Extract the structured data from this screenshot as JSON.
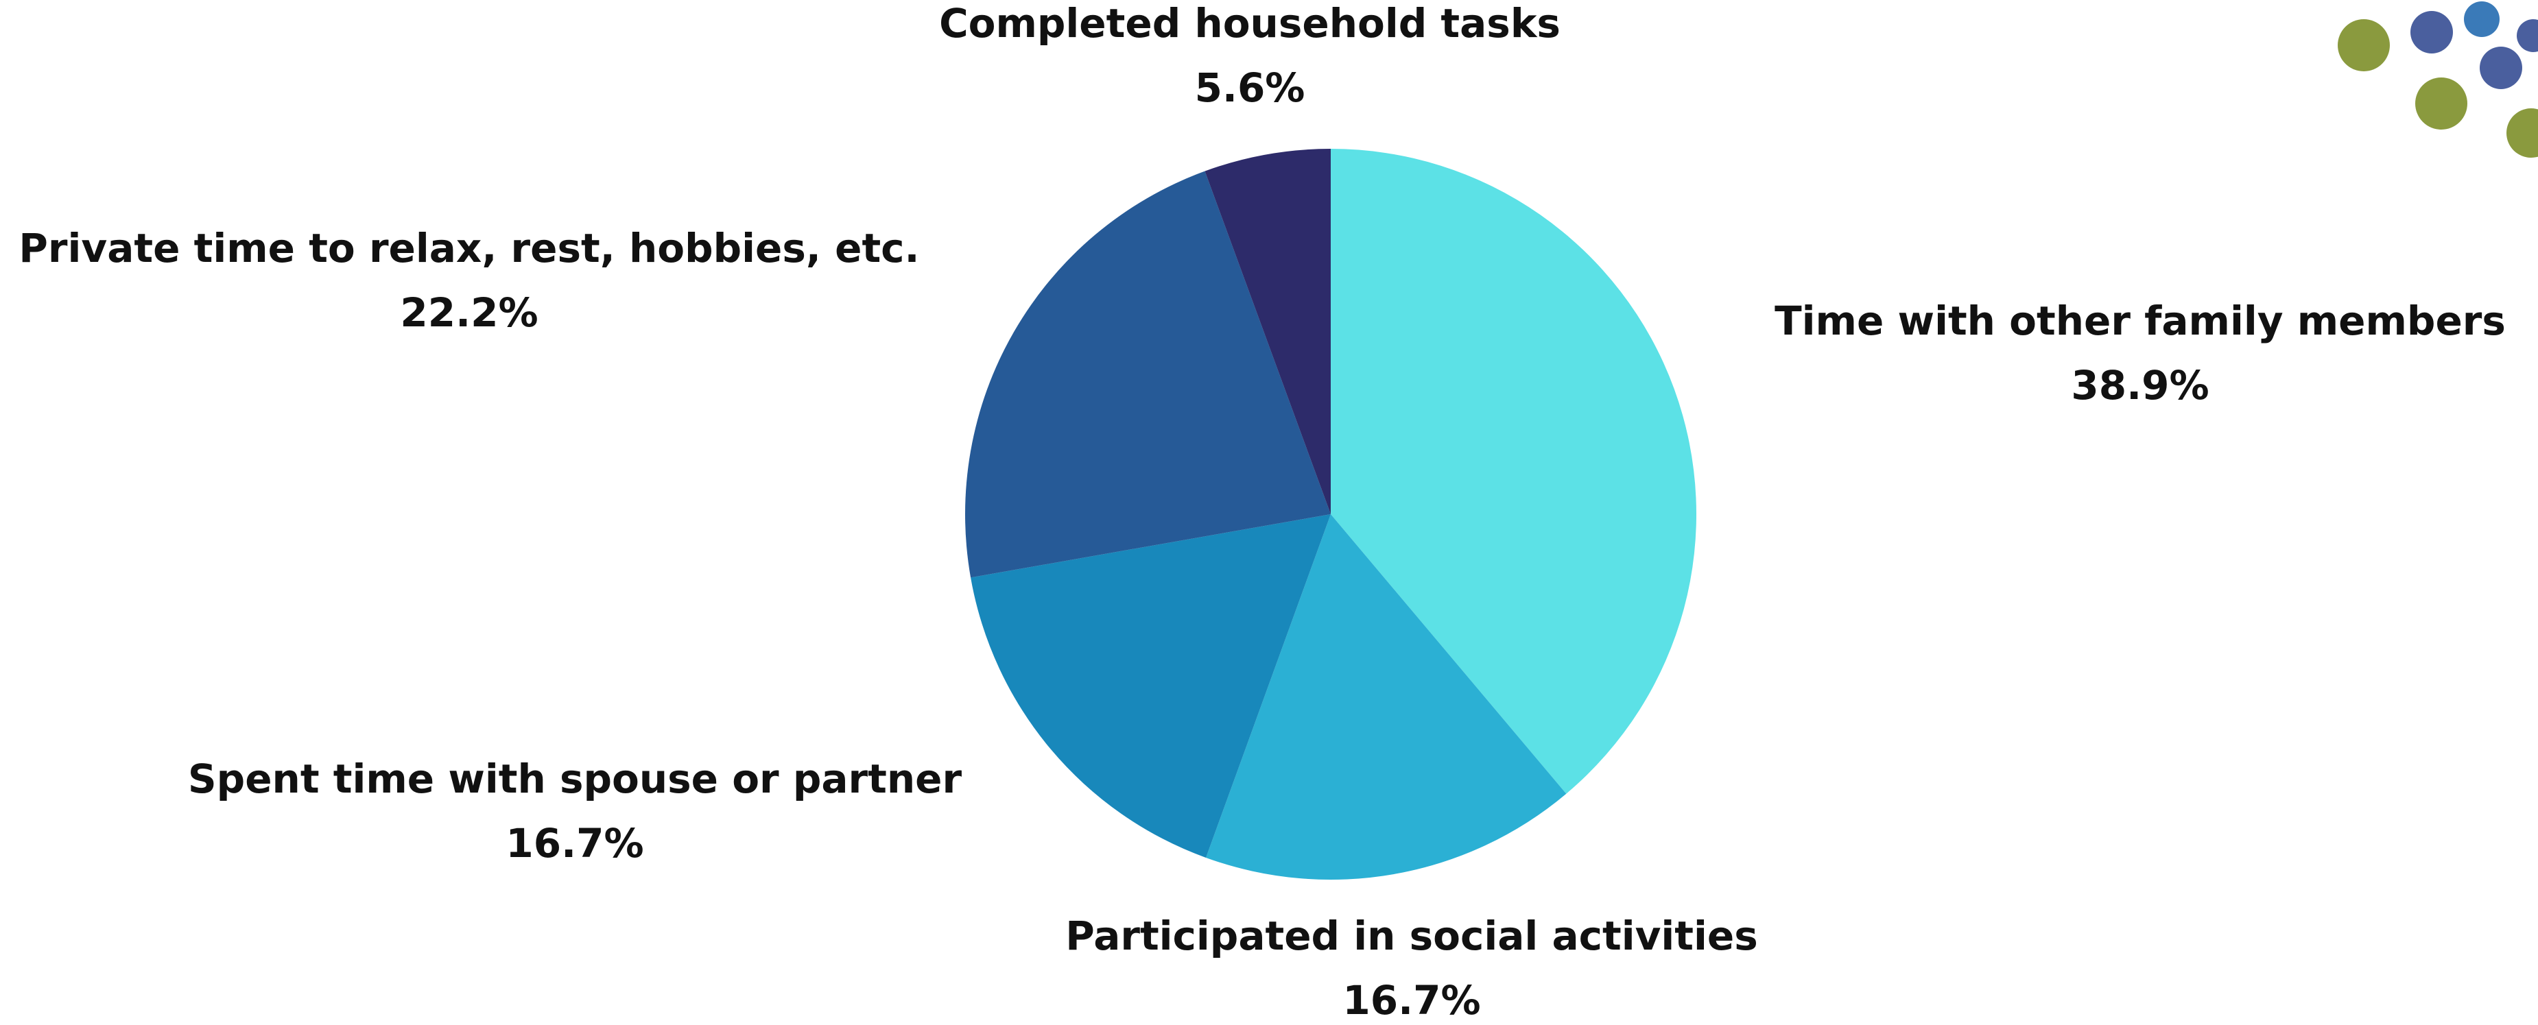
{
  "chart_data": {
    "type": "pie",
    "categories": [
      "Time with other family members",
      "Participated in social activities",
      "Spent time with spouse or partner",
      "Private time to relax, rest, hobbies, etc.",
      "Completed household tasks"
    ],
    "values": [
      38.9,
      16.7,
      16.7,
      22.2,
      5.6
    ],
    "value_labels": [
      "38.9%",
      "16.7%",
      "16.7%",
      "22.2%",
      "5.6%"
    ],
    "colors": [
      "#5ce1e6",
      "#2bb0d4",
      "#1888bb",
      "#265a97",
      "#2d2b6a"
    ]
  }
}
